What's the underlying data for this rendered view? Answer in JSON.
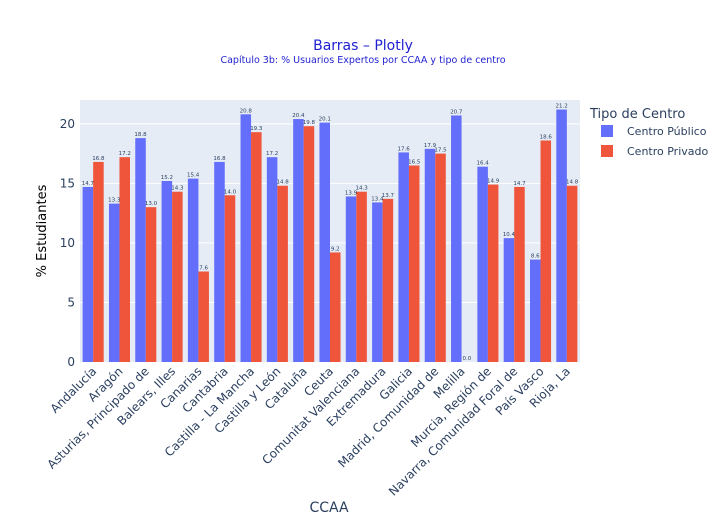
{
  "chart_data": {
    "type": "bar",
    "title": "Barras – Plotly",
    "subtitle": "Capítulo 3b: % Usuarios Expertos por CCAA y tipo de centro",
    "xlabel": "CCAA",
    "ylabel": "% Estudiantes",
    "ylim": [
      0,
      22
    ],
    "yticks": [
      0,
      5,
      10,
      15,
      20
    ],
    "grid": true,
    "legend_title": "Tipo de Centro",
    "legend_position": "right",
    "categories": [
      "Andalucía",
      "Aragón",
      "Asturias, Principado de",
      "Balears, Illes",
      "Canarias",
      "Cantabria",
      "Castilla - La Mancha",
      "Castilla y León",
      "Cataluña",
      "Ceuta",
      "Comunitat Valenciana",
      "Extremadura",
      "Galicia",
      "Madrid, Comunidad de",
      "Melilla",
      "Murcia, Región de",
      "Navarra, Comunidad Foral de",
      "País Vasco",
      "Rioja, La"
    ],
    "series": [
      {
        "name": "Centro Público",
        "color": "#636efa",
        "values": [
          14.7,
          13.3,
          18.8,
          15.2,
          15.4,
          16.8,
          20.8,
          17.2,
          20.4,
          20.1,
          13.9,
          13.4,
          17.6,
          17.9,
          20.7,
          16.4,
          10.4,
          8.6,
          21.2
        ],
        "labels": [
          "14.7",
          "13.3",
          "18.8",
          "15.2",
          "15.4",
          "16.8",
          "20.8",
          "17.2",
          "20.4",
          "20.1",
          "13.9",
          "13.4",
          "17.6",
          "17.9",
          "20.7",
          "16.4",
          "10.4",
          "8.6",
          "21.2"
        ]
      },
      {
        "name": "Centro Privado",
        "color": "#ef553b",
        "values": [
          16.8,
          17.2,
          13.0,
          14.3,
          7.6,
          14.0,
          19.3,
          14.8,
          19.8,
          9.2,
          14.3,
          13.7,
          16.5,
          17.5,
          0.0,
          14.9,
          14.7,
          18.6,
          14.8
        ],
        "labels": [
          "16.8",
          "17.2",
          "13.0",
          "14.3",
          "7.6",
          "14.0",
          "19.3",
          "14.8",
          "19.8",
          "9.2",
          "14.3",
          "13.7",
          "16.5",
          "17.5",
          "0.0",
          "14.9",
          "14.7",
          "18.6",
          "14.8"
        ]
      }
    ]
  }
}
